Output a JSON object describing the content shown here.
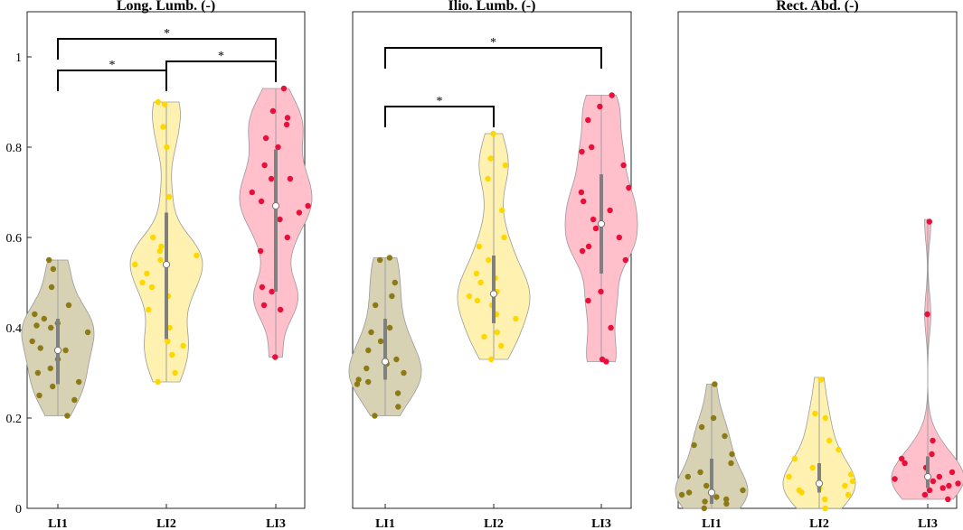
{
  "chart_data": [
    {
      "type": "violin",
      "title": "Long. Lumb. (-)",
      "categories": [
        "LI1",
        "LI2",
        "LI3"
      ],
      "ylim": [
        0,
        1.1
      ],
      "yticks": [
        0,
        0.2,
        0.4,
        0.6,
        0.8,
        1
      ],
      "ytick_labels": [
        "0",
        "0.2",
        "0.4",
        "0.6",
        "0.8",
        "1"
      ],
      "grid": false,
      "series": [
        {
          "category": "LI1",
          "color": "#8C7A16",
          "fill": "#D8D2B4",
          "median": 0.35,
          "q1": 0.275,
          "q3": 0.42,
          "min": 0.205,
          "max": 0.55,
          "points": [
            0.205,
            0.24,
            0.25,
            0.27,
            0.28,
            0.3,
            0.31,
            0.33,
            0.35,
            0.355,
            0.37,
            0.39,
            0.4,
            0.405,
            0.41,
            0.42,
            0.43,
            0.45,
            0.49,
            0.53,
            0.55
          ]
        },
        {
          "category": "LI2",
          "color": "#FFD700",
          "fill": "#FFF2B0",
          "median": 0.54,
          "q1": 0.375,
          "q3": 0.655,
          "min": 0.28,
          "max": 0.9,
          "points": [
            0.28,
            0.3,
            0.34,
            0.36,
            0.37,
            0.4,
            0.44,
            0.47,
            0.49,
            0.5,
            0.52,
            0.54,
            0.55,
            0.56,
            0.57,
            0.58,
            0.6,
            0.69,
            0.8,
            0.845,
            0.895,
            0.9
          ]
        },
        {
          "category": "LI3",
          "color": "#E8103A",
          "fill": "#FFBFCB",
          "median": 0.67,
          "q1": 0.48,
          "q3": 0.795,
          "min": 0.335,
          "max": 0.93,
          "points": [
            0.335,
            0.44,
            0.45,
            0.48,
            0.49,
            0.57,
            0.6,
            0.64,
            0.655,
            0.67,
            0.68,
            0.7,
            0.73,
            0.73,
            0.76,
            0.8,
            0.82,
            0.85,
            0.865,
            0.88,
            0.93
          ]
        }
      ],
      "significance": [
        {
          "from": "LI1",
          "to": "LI3",
          "y": 1.04,
          "label": "*"
        },
        {
          "from": "LI1",
          "to": "LI2",
          "y": 0.97,
          "label": "*"
        },
        {
          "from": "LI2",
          "to": "LI3",
          "y": 0.99,
          "label": "*"
        }
      ]
    },
    {
      "type": "violin",
      "title": "Ilio. Lumb. (-)",
      "categories": [
        "LI1",
        "LI2",
        "LI3"
      ],
      "ylim": [
        0,
        1.1
      ],
      "grid": false,
      "series": [
        {
          "category": "LI1",
          "color": "#8C7A16",
          "fill": "#D8D2B4",
          "median": 0.325,
          "q1": 0.285,
          "q3": 0.42,
          "min": 0.205,
          "max": 0.555,
          "points": [
            0.205,
            0.225,
            0.255,
            0.275,
            0.28,
            0.285,
            0.3,
            0.31,
            0.32,
            0.33,
            0.35,
            0.37,
            0.39,
            0.4,
            0.45,
            0.47,
            0.5,
            0.55,
            0.555
          ]
        },
        {
          "category": "LI2",
          "color": "#FFD700",
          "fill": "#FFF2B0",
          "median": 0.475,
          "q1": 0.41,
          "q3": 0.56,
          "min": 0.33,
          "max": 0.83,
          "points": [
            0.33,
            0.36,
            0.38,
            0.39,
            0.42,
            0.43,
            0.45,
            0.46,
            0.47,
            0.48,
            0.5,
            0.51,
            0.52,
            0.55,
            0.58,
            0.6,
            0.66,
            0.73,
            0.76,
            0.775,
            0.83
          ]
        },
        {
          "category": "LI3",
          "color": "#E8103A",
          "fill": "#FFBFCB",
          "median": 0.63,
          "q1": 0.52,
          "q3": 0.74,
          "min": 0.325,
          "max": 0.915,
          "points": [
            0.325,
            0.33,
            0.4,
            0.46,
            0.48,
            0.55,
            0.57,
            0.58,
            0.6,
            0.62,
            0.64,
            0.66,
            0.68,
            0.7,
            0.71,
            0.76,
            0.79,
            0.8,
            0.86,
            0.89,
            0.915
          ]
        }
      ],
      "significance": [
        {
          "from": "LI1",
          "to": "LI3",
          "y": 1.02,
          "label": "*"
        },
        {
          "from": "LI1",
          "to": "LI2",
          "y": 0.89,
          "label": "*"
        }
      ]
    },
    {
      "type": "violin",
      "title": "Rect. Abd. (-)",
      "categories": [
        "LI1",
        "LI2",
        "LI3"
      ],
      "ylim": [
        0,
        1.1
      ],
      "grid": false,
      "series": [
        {
          "category": "LI1",
          "color": "#8C7A16",
          "fill": "#D8D2B4",
          "median": 0.035,
          "q1": 0.01,
          "q3": 0.11,
          "min": 0.0,
          "max": 0.275,
          "points": [
            0.0,
            0.01,
            0.015,
            0.02,
            0.025,
            0.03,
            0.035,
            0.04,
            0.05,
            0.07,
            0.08,
            0.1,
            0.12,
            0.14,
            0.16,
            0.18,
            0.2,
            0.275
          ]
        },
        {
          "category": "LI2",
          "color": "#FFD700",
          "fill": "#FFF2B0",
          "median": 0.055,
          "q1": 0.035,
          "q3": 0.1,
          "min": 0.0,
          "max": 0.29,
          "points": [
            0.0,
            0.02,
            0.03,
            0.035,
            0.04,
            0.045,
            0.05,
            0.06,
            0.07,
            0.075,
            0.09,
            0.11,
            0.13,
            0.15,
            0.2,
            0.21,
            0.285
          ]
        },
        {
          "category": "LI3",
          "color": "#E8103A",
          "fill": "#FFBFCB",
          "median": 0.07,
          "q1": 0.045,
          "q3": 0.115,
          "min": 0.02,
          "max": 0.64,
          "points": [
            0.02,
            0.03,
            0.04,
            0.045,
            0.05,
            0.055,
            0.06,
            0.065,
            0.07,
            0.08,
            0.09,
            0.1,
            0.11,
            0.12,
            0.15,
            0.43,
            0.635
          ]
        }
      ],
      "significance": []
    }
  ]
}
